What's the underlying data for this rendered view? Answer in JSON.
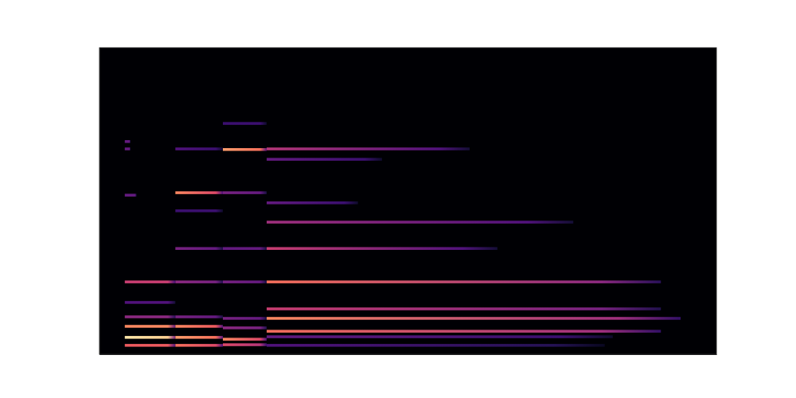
{
  "chart_data": {
    "type": "heatmap",
    "tick_labels": false,
    "xlim": [
      0,
      100
    ],
    "ylim": [
      0,
      100
    ],
    "zlim": [
      0,
      1
    ],
    "cells": [
      [
        4.1,
        12.3,
        2.9,
        0.65,
        0.65
      ],
      [
        4.1,
        12.3,
        5.5,
        0.95,
        0.9
      ],
      [
        4.1,
        12.3,
        9.1,
        0.75,
        0.75
      ],
      [
        4.1,
        12.3,
        12.2,
        0.4,
        0.4
      ],
      [
        4.1,
        12.3,
        16.9,
        0.25,
        0.25
      ],
      [
        4.1,
        12.3,
        23.6,
        0.55,
        0.55
      ],
      [
        4.1,
        6.0,
        51.9,
        0.3,
        0.3
      ],
      [
        4.1,
        5.0,
        67.0,
        0.3,
        0.3
      ],
      [
        4.1,
        5.0,
        69.4,
        0.3,
        0.3
      ],
      [
        12.3,
        20.0,
        2.9,
        0.7,
        0.6
      ],
      [
        12.3,
        20.0,
        5.5,
        0.8,
        0.7
      ],
      [
        12.3,
        20.0,
        9.1,
        0.75,
        0.65
      ],
      [
        12.3,
        20.0,
        12.2,
        0.35,
        0.3
      ],
      [
        12.3,
        20.0,
        23.6,
        0.4,
        0.35
      ],
      [
        12.3,
        20.0,
        34.5,
        0.35,
        0.3
      ],
      [
        12.3,
        20.0,
        52.7,
        0.75,
        0.6
      ],
      [
        12.3,
        20.0,
        46.8,
        0.2,
        0.2
      ],
      [
        12.3,
        20.0,
        67.0,
        0.25,
        0.2
      ],
      [
        20.0,
        27.1,
        3.1,
        0.6,
        0.5
      ],
      [
        20.0,
        27.1,
        4.9,
        0.75,
        0.6
      ],
      [
        20.0,
        27.1,
        8.6,
        0.4,
        0.35
      ],
      [
        20.0,
        27.1,
        11.7,
        0.35,
        0.3
      ],
      [
        20.0,
        27.1,
        23.6,
        0.35,
        0.3
      ],
      [
        20.0,
        27.1,
        34.5,
        0.3,
        0.3
      ],
      [
        20.0,
        27.1,
        52.7,
        0.35,
        0.3
      ],
      [
        20.0,
        27.1,
        66.8,
        0.8,
        0.7
      ],
      [
        20.0,
        27.1,
        75.3,
        0.2,
        0.2
      ],
      [
        27.1,
        91.0,
        7.5,
        0.7,
        0.45
      ],
      [
        27.1,
        94.2,
        11.7,
        0.75,
        0.45
      ],
      [
        27.1,
        91.0,
        14.8,
        0.55,
        0.35
      ],
      [
        27.1,
        91.0,
        23.6,
        0.7,
        0.4
      ],
      [
        27.1,
        64.5,
        34.5,
        0.55,
        0.25
      ],
      [
        27.1,
        76.8,
        43.1,
        0.45,
        0.25
      ],
      [
        27.1,
        41.9,
        49.4,
        0.3,
        0.2
      ],
      [
        27.1,
        60.0,
        67.0,
        0.5,
        0.25
      ],
      [
        27.1,
        45.8,
        63.6,
        0.3,
        0.2
      ],
      [
        27.1,
        83.2,
        5.7,
        0.3,
        0.2
      ],
      [
        27.1,
        81.9,
        2.9,
        0.25,
        0.15
      ]
    ]
  }
}
